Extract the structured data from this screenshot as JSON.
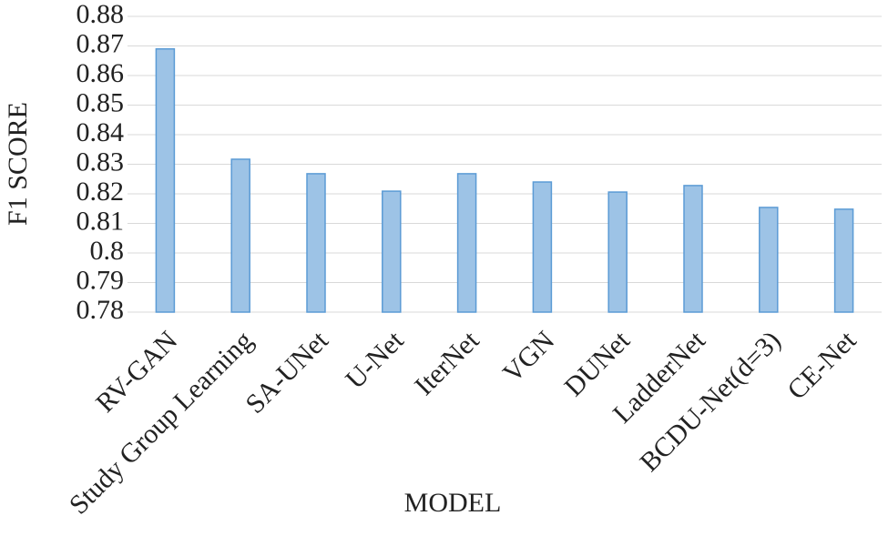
{
  "chart_data": {
    "type": "bar",
    "x_label": "MODEL",
    "y_label": "F1 SCORE",
    "categories": [
      "RV-GAN",
      "Study Group Learning",
      "SA-UNet",
      "U-Net",
      "IterNet",
      "VGN",
      "DUNet",
      "LadderNet",
      "BCDU-Net(d=3)",
      "CE-Net"
    ],
    "values": [
      0.869,
      0.8317,
      0.8268,
      0.8209,
      0.8268,
      0.824,
      0.8206,
      0.8228,
      0.8154,
      0.8148
    ],
    "color": "#9dc3e6",
    "ylim": [
      0.78,
      0.88
    ],
    "yticks": [
      0.78,
      0.79,
      0.8,
      0.81,
      0.82,
      0.83,
      0.84,
      0.85,
      0.86,
      0.87,
      0.88
    ],
    "grid": true
  }
}
